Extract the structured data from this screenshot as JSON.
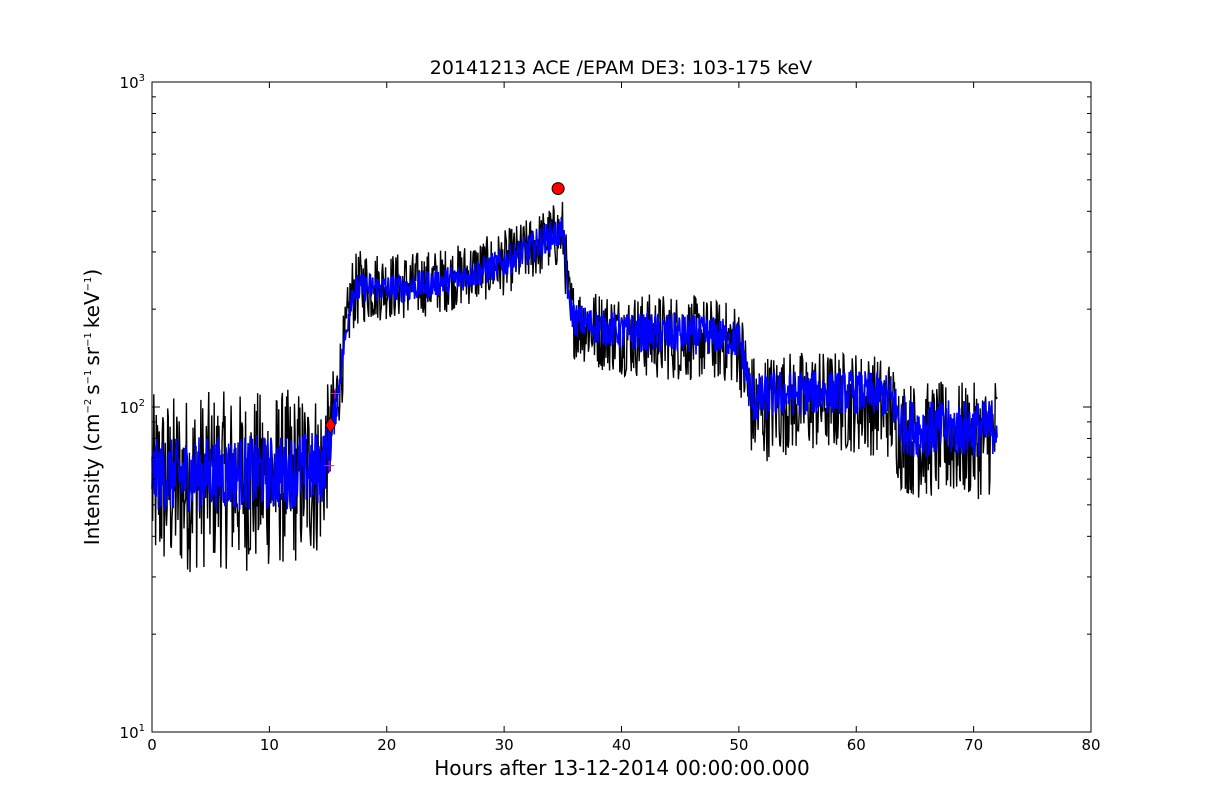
{
  "chart_data": {
    "type": "line",
    "title": "20141213 ACE /EPAM DE3: 103-175 keV",
    "xlabel": "Hours after 13-12-2014 00:00:00.000",
    "ylabel": {
      "prefix": "Intensity (cm",
      "exp1": "−2",
      "unit2": "s",
      "exp2": "−1",
      "unit3": "sr",
      "exp3": "−1",
      "unit4": "keV",
      "exp4": "−1",
      "suffix": ")"
    },
    "xlim": [
      0,
      80
    ],
    "ylim": [
      10,
      1000
    ],
    "yscale": "log",
    "x_ticks": [
      "0",
      "10",
      "20",
      "30",
      "40",
      "50",
      "60",
      "70",
      "80"
    ],
    "y_ticks": [
      {
        "base": "10",
        "exp": "1"
      },
      {
        "base": "10",
        "exp": "2"
      },
      {
        "base": "10",
        "exp": "3"
      }
    ],
    "grid": false,
    "legend": "none",
    "series": [
      {
        "role": "raw",
        "color": "#000000",
        "envelope": {
          "x": [
            0,
            2,
            5,
            8,
            11,
            13,
            14.5,
            15.2,
            15.8,
            16.5,
            17,
            18,
            20,
            22,
            25,
            28,
            30,
            32,
            33,
            34,
            35,
            35.5,
            36,
            38,
            40,
            43,
            45,
            48,
            50,
            51,
            51.5,
            53,
            55,
            58,
            60,
            62,
            63,
            63.8,
            65,
            67,
            69,
            71,
            72
          ],
          "low": [
            30,
            30,
            32,
            31,
            32,
            33,
            35,
            55,
            80,
            120,
            170,
            180,
            185,
            185,
            195,
            210,
            220,
            240,
            250,
            260,
            270,
            160,
            140,
            130,
            125,
            120,
            120,
            120,
            115,
            70,
            65,
            70,
            72,
            72,
            72,
            70,
            68,
            55,
            52,
            52,
            52,
            52,
            55
          ],
          "high": [
            110,
            110,
            112,
            112,
            114,
            115,
            115,
            120,
            150,
            210,
            290,
            310,
            300,
            300,
            310,
            330,
            350,
            380,
            400,
            420,
            440,
            270,
            240,
            230,
            225,
            225,
            225,
            215,
            210,
            150,
            145,
            150,
            150,
            150,
            150,
            145,
            140,
            125,
            120,
            120,
            120,
            118,
            130
          ]
        }
      },
      {
        "role": "smoothed",
        "color": "#0000ff",
        "envelope": {
          "x": [
            0,
            2,
            5,
            8,
            11,
            13,
            14.5,
            15.2,
            15.8,
            16.5,
            17,
            18,
            20,
            22,
            25,
            28,
            30,
            32,
            33,
            34,
            35,
            35.5,
            36,
            38,
            40,
            43,
            45,
            48,
            50,
            51,
            51.5,
            53,
            55,
            58,
            60,
            62,
            63,
            63.8,
            65,
            67,
            69,
            71,
            72
          ],
          "low": [
            48,
            47,
            48,
            48,
            48,
            49,
            50,
            65,
            95,
            150,
            200,
            210,
            210,
            210,
            220,
            235,
            250,
            270,
            285,
            300,
            310,
            190,
            165,
            155,
            150,
            145,
            145,
            145,
            140,
            90,
            88,
            92,
            94,
            95,
            95,
            93,
            90,
            72,
            70,
            70,
            70,
            70,
            72
          ],
          "high": [
            80,
            80,
            82,
            82,
            82,
            84,
            85,
            95,
            120,
            180,
            250,
            260,
            255,
            260,
            270,
            290,
            310,
            340,
            360,
            375,
            385,
            230,
            210,
            200,
            195,
            195,
            195,
            190,
            185,
            130,
            125,
            130,
            130,
            130,
            130,
            128,
            125,
            110,
            105,
            105,
            105,
            105,
            110
          ]
        }
      }
    ],
    "markers": [
      {
        "name": "onset",
        "shape": "diamond",
        "color": "#ff0000",
        "x": 15.2,
        "y": 88
      },
      {
        "name": "peak",
        "shape": "circle",
        "color": "#ff0000",
        "x": 34.6,
        "y": 470
      }
    ],
    "crosshairs": [
      {
        "x": 15.1,
        "y": 66,
        "color": "#ff00ff"
      },
      {
        "x": 15.6,
        "y": 110,
        "color": "#ff00ff"
      }
    ]
  }
}
